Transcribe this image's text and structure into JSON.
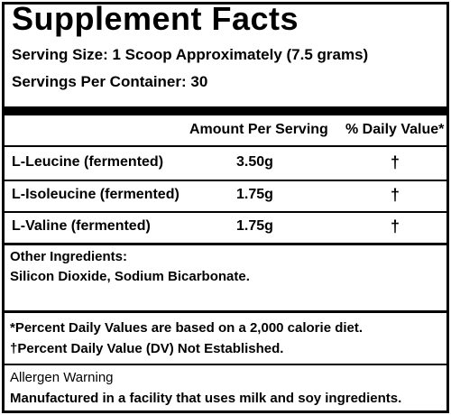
{
  "panel": {
    "title": "Supplement Facts",
    "serving_size": "Serving Size: 1 Scoop Approximately (7.5 grams)",
    "servings_per_container": "Servings Per Container: 30"
  },
  "table": {
    "header_amount": "Amount Per Serving",
    "header_dv": "% Daily Value*",
    "rows": [
      {
        "name": "L-Leucine (fermented)",
        "amount": "3.50g",
        "dv": "†"
      },
      {
        "name": "L-Isoleucine (fermented)",
        "amount": "1.75g",
        "dv": "†"
      },
      {
        "name": "L-Valine (fermented)",
        "amount": "1.75g",
        "dv": "†"
      }
    ]
  },
  "other_ingredients": {
    "label": "Other Ingredients:",
    "text": "Silicon Dioxide, Sodium Bicarbonate."
  },
  "footnotes": {
    "percent_dv": "*Percent Daily Values are based on a 2,000 calorie diet.",
    "dv_not_established": "†Percent Daily Value (DV) Not Established."
  },
  "allergen": {
    "label": "Allergen Warning",
    "text": "Manufactured in a facility that uses milk and soy ingredients."
  }
}
